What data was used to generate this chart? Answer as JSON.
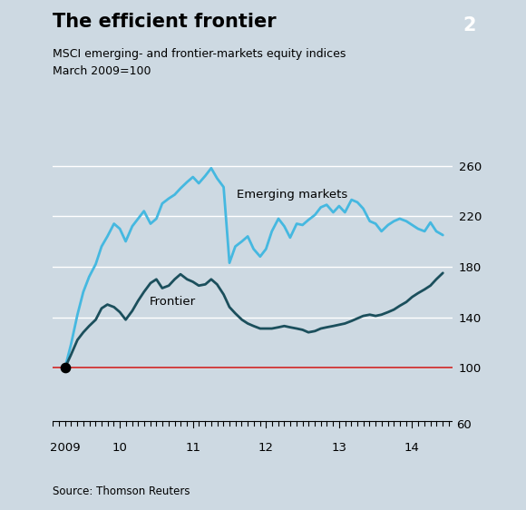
{
  "title": "The efficient frontier",
  "subtitle1": "MSCI emerging- and frontier-markets equity indices",
  "subtitle2": "March 2009=100",
  "source": "Source: Thomson Reuters",
  "badge_num": "2",
  "background_color": "#cdd9e2",
  "plot_bg_color": "#cdd9e2",
  "emerging_color": "#45b8e0",
  "frontier_color": "#1b4f5c",
  "baseline_color": "#cc2222",
  "ylim": [
    60,
    270
  ],
  "yticks": [
    100,
    140,
    180,
    220,
    260
  ],
  "xlabel_years": [
    "2009",
    "10",
    "11",
    "12",
    "13",
    "14"
  ],
  "year_positions": [
    2009.25,
    2010.0,
    2011.0,
    2012.0,
    2013.0,
    2014.0
  ],
  "emerging_label": "Emerging markets",
  "frontier_label": "Frontier",
  "emerging_x": [
    2009.25,
    2009.33,
    2009.42,
    2009.5,
    2009.58,
    2009.67,
    2009.75,
    2009.83,
    2009.92,
    2010.0,
    2010.08,
    2010.17,
    2010.25,
    2010.33,
    2010.42,
    2010.5,
    2010.58,
    2010.67,
    2010.75,
    2010.83,
    2010.92,
    2011.0,
    2011.08,
    2011.17,
    2011.25,
    2011.33,
    2011.42,
    2011.5,
    2011.58,
    2011.67,
    2011.75,
    2011.83,
    2011.92,
    2012.0,
    2012.08,
    2012.17,
    2012.25,
    2012.33,
    2012.42,
    2012.5,
    2012.58,
    2012.67,
    2012.75,
    2012.83,
    2012.92,
    2013.0,
    2013.08,
    2013.17,
    2013.25,
    2013.33,
    2013.42,
    2013.5,
    2013.58,
    2013.67,
    2013.75,
    2013.83,
    2013.92,
    2014.0,
    2014.08,
    2014.17,
    2014.25,
    2014.33,
    2014.42
  ],
  "emerging_y": [
    100,
    118,
    142,
    160,
    172,
    182,
    196,
    204,
    214,
    210,
    200,
    212,
    218,
    224,
    214,
    218,
    230,
    234,
    237,
    242,
    247,
    251,
    246,
    252,
    258,
    250,
    243,
    183,
    196,
    200,
    204,
    194,
    188,
    194,
    208,
    218,
    212,
    203,
    214,
    213,
    217,
    221,
    227,
    229,
    223,
    228,
    223,
    233,
    231,
    226,
    216,
    214,
    208,
    213,
    216,
    218,
    216,
    213,
    210,
    208,
    215,
    208,
    205
  ],
  "frontier_x": [
    2009.25,
    2009.33,
    2009.42,
    2009.5,
    2009.58,
    2009.67,
    2009.75,
    2009.83,
    2009.92,
    2010.0,
    2010.08,
    2010.17,
    2010.25,
    2010.33,
    2010.42,
    2010.5,
    2010.58,
    2010.67,
    2010.75,
    2010.83,
    2010.92,
    2011.0,
    2011.08,
    2011.17,
    2011.25,
    2011.33,
    2011.42,
    2011.5,
    2011.58,
    2011.67,
    2011.75,
    2011.83,
    2011.92,
    2012.0,
    2012.08,
    2012.17,
    2012.25,
    2012.33,
    2012.42,
    2012.5,
    2012.58,
    2012.67,
    2012.75,
    2012.83,
    2012.92,
    2013.0,
    2013.08,
    2013.17,
    2013.25,
    2013.33,
    2013.42,
    2013.5,
    2013.58,
    2013.67,
    2013.75,
    2013.83,
    2013.92,
    2014.0,
    2014.08,
    2014.17,
    2014.25,
    2014.33,
    2014.42
  ],
  "frontier_y": [
    100,
    110,
    122,
    128,
    133,
    138,
    147,
    150,
    148,
    144,
    138,
    145,
    153,
    160,
    167,
    170,
    163,
    165,
    170,
    174,
    170,
    168,
    165,
    166,
    170,
    166,
    158,
    148,
    143,
    138,
    135,
    133,
    131,
    131,
    131,
    132,
    133,
    132,
    131,
    130,
    128,
    129,
    131,
    132,
    133,
    134,
    135,
    137,
    139,
    141,
    142,
    141,
    142,
    144,
    146,
    149,
    152,
    156,
    159,
    162,
    165,
    170,
    175
  ]
}
